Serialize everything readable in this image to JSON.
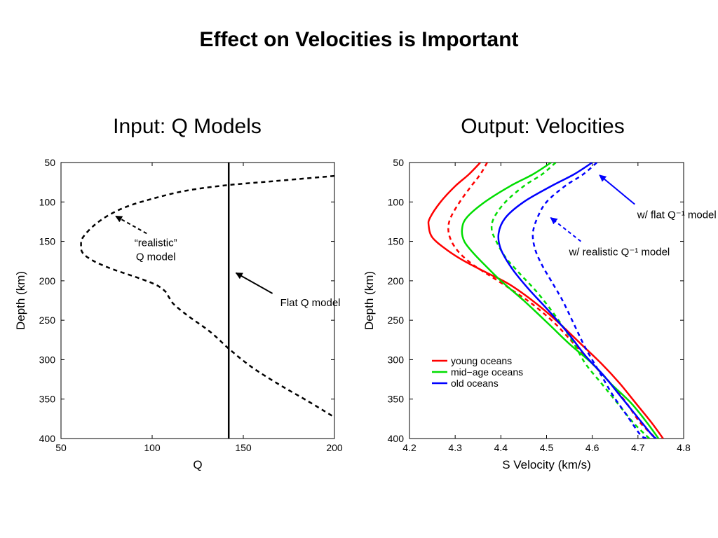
{
  "slide": {
    "title": "Effect on Velocities is Important",
    "left_title": "Input: Q Models",
    "right_title": "Output: Velocities"
  },
  "colors": {
    "young": "#ff0000",
    "mid": "#00dd00",
    "old": "#0000ff",
    "black": "#000000"
  },
  "chart_data": [
    {
      "type": "line",
      "xlabel": "Q",
      "ylabel": "Depth (km)",
      "xlim": [
        50,
        200
      ],
      "ylim": [
        400,
        50
      ],
      "y_inverted": true,
      "xticks": [
        50,
        100,
        150,
        200
      ],
      "yticks": [
        50,
        100,
        150,
        200,
        250,
        300,
        350,
        400
      ],
      "grid": false,
      "series": [
        {
          "style": "dashed",
          "color": "#000000",
          "points": [
            [
              200,
              67
            ],
            [
              165,
              74
            ],
            [
              140,
              79
            ],
            [
              118,
              86
            ],
            [
              100,
              96
            ],
            [
              86,
              106
            ],
            [
              76,
              117
            ],
            [
              68,
              130
            ],
            [
              62,
              145
            ],
            [
              61,
              155
            ],
            [
              62,
              165
            ],
            [
              68,
              175
            ],
            [
              78,
              185
            ],
            [
              92,
              196
            ],
            [
              102,
              205
            ],
            [
              107,
              213
            ],
            [
              109,
              220
            ],
            [
              112,
              230
            ],
            [
              120,
              245
            ],
            [
              132,
              265
            ],
            [
              143,
              288
            ],
            [
              155,
              310
            ],
            [
              170,
              332
            ],
            [
              185,
              352
            ],
            [
              200,
              373
            ]
          ]
        },
        {
          "style": "solid",
          "color": "#000000",
          "points": [
            [
              142,
              50
            ],
            [
              142,
              400
            ]
          ]
        }
      ],
      "annotations": [
        {
          "text_lines": [
            "“realistic”",
            "Q model"
          ],
          "arrow_from": [
            97,
            140
          ],
          "arrow_to": [
            80,
            118
          ]
        },
        {
          "text_lines": [
            "Flat Q model"
          ],
          "arrow_from": [
            166,
            216
          ],
          "arrow_to": [
            146,
            190
          ]
        }
      ]
    },
    {
      "type": "line",
      "xlabel": "S Velocity (km/s)",
      "ylabel": "Depth (km)",
      "xlim": [
        4.2,
        4.8
      ],
      "ylim": [
        400,
        50
      ],
      "y_inverted": true,
      "xticks": [
        4.2,
        4.3,
        4.4,
        4.5,
        4.6,
        4.7,
        4.8
      ],
      "yticks": [
        50,
        100,
        150,
        200,
        250,
        300,
        350,
        400
      ],
      "grid": false,
      "legend": {
        "position": "lower-left",
        "entries": [
          {
            "label": "young oceans",
            "color": "#ff0000"
          },
          {
            "label": "mid−age oceans",
            "color": "#00dd00"
          },
          {
            "label": "old oceans",
            "color": "#0000ff"
          }
        ]
      },
      "series": [
        {
          "name": "young oceans",
          "color": "#ff0000",
          "style": "solid",
          "points": [
            [
              4.355,
              50
            ],
            [
              4.33,
              65
            ],
            [
              4.3,
              80
            ],
            [
              4.268,
              100
            ],
            [
              4.245,
              120
            ],
            [
              4.242,
              130
            ],
            [
              4.25,
              145
            ],
            [
              4.28,
              160
            ],
            [
              4.32,
              175
            ],
            [
              4.37,
              190
            ],
            [
              4.42,
              205
            ],
            [
              4.48,
              230
            ],
            [
              4.53,
              255
            ],
            [
              4.575,
              280
            ],
            [
              4.62,
              305
            ],
            [
              4.66,
              330
            ],
            [
              4.695,
              355
            ],
            [
              4.73,
              380
            ],
            [
              4.755,
              400
            ]
          ]
        },
        {
          "name": "young oceans",
          "color": "#ff0000",
          "style": "dashed",
          "points": [
            [
              4.37,
              50
            ],
            [
              4.355,
              65
            ],
            [
              4.335,
              80
            ],
            [
              4.31,
              100
            ],
            [
              4.29,
              120
            ],
            [
              4.285,
              135
            ],
            [
              4.292,
              150
            ],
            [
              4.31,
              165
            ],
            [
              4.34,
              180
            ],
            [
              4.38,
              195
            ],
            [
              4.42,
              210
            ],
            [
              4.47,
              230
            ],
            [
              4.52,
              255
            ],
            [
              4.56,
              280
            ],
            [
              4.6,
              305
            ],
            [
              4.64,
              330
            ],
            [
              4.675,
              355
            ],
            [
              4.705,
              380
            ],
            [
              4.74,
              400
            ]
          ]
        },
        {
          "name": "mid−age oceans",
          "color": "#00dd00",
          "style": "solid",
          "points": [
            [
              4.51,
              50
            ],
            [
              4.47,
              65
            ],
            [
              4.42,
              80
            ],
            [
              4.365,
              100
            ],
            [
              4.325,
              120
            ],
            [
              4.315,
              135
            ],
            [
              4.32,
              150
            ],
            [
              4.34,
              165
            ],
            [
              4.365,
              180
            ],
            [
              4.4,
              200
            ],
            [
              4.45,
              225
            ],
            [
              4.505,
              255
            ],
            [
              4.55,
              280
            ],
            [
              4.6,
              305
            ],
            [
              4.64,
              330
            ],
            [
              4.685,
              355
            ],
            [
              4.72,
              380
            ],
            [
              4.745,
              400
            ]
          ]
        },
        {
          "name": "mid−age oceans",
          "color": "#00dd00",
          "style": "dashed",
          "points": [
            [
              4.52,
              50
            ],
            [
              4.49,
              65
            ],
            [
              4.45,
              80
            ],
            [
              4.41,
              100
            ],
            [
              4.385,
              120
            ],
            [
              4.38,
              135
            ],
            [
              4.39,
              150
            ],
            [
              4.41,
              170
            ],
            [
              4.44,
              190
            ],
            [
              4.48,
              215
            ],
            [
              4.52,
              245
            ],
            [
              4.555,
              275
            ],
            [
              4.585,
              305
            ],
            [
              4.62,
              330
            ],
            [
              4.655,
              355
            ],
            [
              4.69,
              380
            ],
            [
              4.725,
              400
            ]
          ]
        },
        {
          "name": "old oceans",
          "color": "#0000ff",
          "style": "solid",
          "points": [
            [
              4.6,
              50
            ],
            [
              4.56,
              65
            ],
            [
              4.51,
              80
            ],
            [
              4.45,
              100
            ],
            [
              4.41,
              120
            ],
            [
              4.395,
              140
            ],
            [
              4.4,
              160
            ],
            [
              4.425,
              185
            ],
            [
              4.46,
              210
            ],
            [
              4.5,
              235
            ],
            [
              4.545,
              265
            ],
            [
              4.585,
              295
            ],
            [
              4.625,
              320
            ],
            [
              4.66,
              345
            ],
            [
              4.695,
              370
            ],
            [
              4.73,
              395
            ],
            [
              4.74,
              400
            ]
          ]
        },
        {
          "name": "old oceans",
          "color": "#0000ff",
          "style": "dashed",
          "points": [
            [
              4.61,
              50
            ],
            [
              4.58,
              65
            ],
            [
              4.54,
              80
            ],
            [
              4.5,
              100
            ],
            [
              4.48,
              120
            ],
            [
              4.47,
              140
            ],
            [
              4.475,
              160
            ],
            [
              4.49,
              180
            ],
            [
              4.51,
              200
            ],
            [
              4.535,
              225
            ],
            [
              4.56,
              255
            ],
            [
              4.585,
              285
            ],
            [
              4.615,
              315
            ],
            [
              4.645,
              345
            ],
            [
              4.675,
              370
            ],
            [
              4.705,
              395
            ],
            [
              4.72,
              400
            ]
          ]
        }
      ],
      "annotations": [
        {
          "text": "w/ flat Q⁻¹ model",
          "color": "#0000ff",
          "arrow_from": [
            4.693,
            103
          ],
          "arrow_to": [
            4.616,
            66
          ]
        },
        {
          "text": "w/ realistic Q⁻¹ model",
          "color": "#0000ff",
          "arrow_from": [
            4.575,
            150
          ],
          "arrow_to": [
            4.509,
            120
          ]
        }
      ]
    }
  ]
}
